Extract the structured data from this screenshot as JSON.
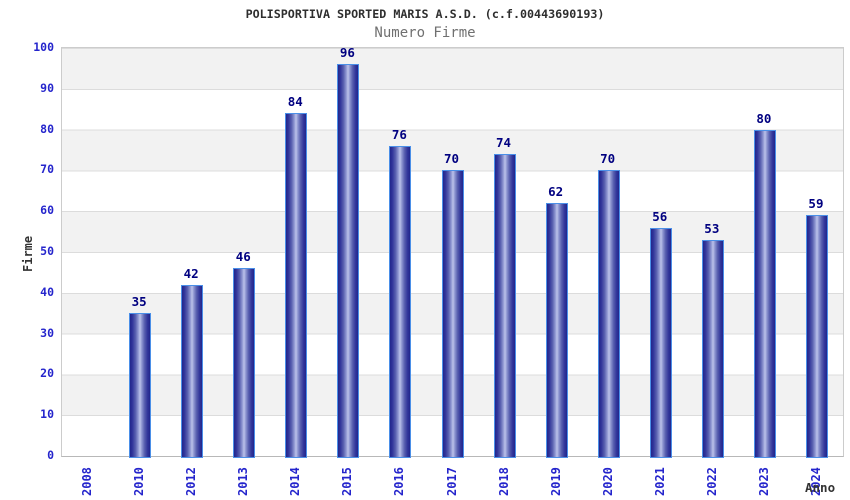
{
  "chart_data": {
    "type": "bar",
    "title": "POLISPORTIVA SPORTED MARIS A.S.D. (c.f.00443690193)",
    "subtitle": "Numero Firme",
    "xlabel": "Anno",
    "ylabel": "Firme",
    "categories": [
      "2008",
      "2010",
      "2012",
      "2013",
      "2014",
      "2015",
      "2016",
      "2017",
      "2018",
      "2019",
      "2020",
      "2021",
      "2022",
      "2023",
      "2024"
    ],
    "values": [
      null,
      35,
      42,
      46,
      84,
      96,
      76,
      70,
      74,
      62,
      70,
      56,
      53,
      80,
      59
    ],
    "ylim": [
      0,
      100
    ],
    "ytick_step": 10,
    "yticks": [
      0,
      10,
      20,
      30,
      40,
      50,
      60,
      70,
      80,
      90,
      100
    ],
    "grid": "alternating horizontal bands with gridlines every 10",
    "legend_position": "none",
    "value_labels_shown": true,
    "colors": {
      "title_color": "#2e2e2e",
      "subtitle_color": "#707070",
      "axis_label_color": "#333333",
      "tick_label": "#2525cc",
      "value_label": "#000080",
      "bar_edge": "#22268c",
      "bar_center": "#bcc3ea",
      "bar_border": "#4a8fe8",
      "band_gray": "#f2f2f2",
      "gridline": "#dcdcdc",
      "plot_border": "#cccccc"
    }
  }
}
